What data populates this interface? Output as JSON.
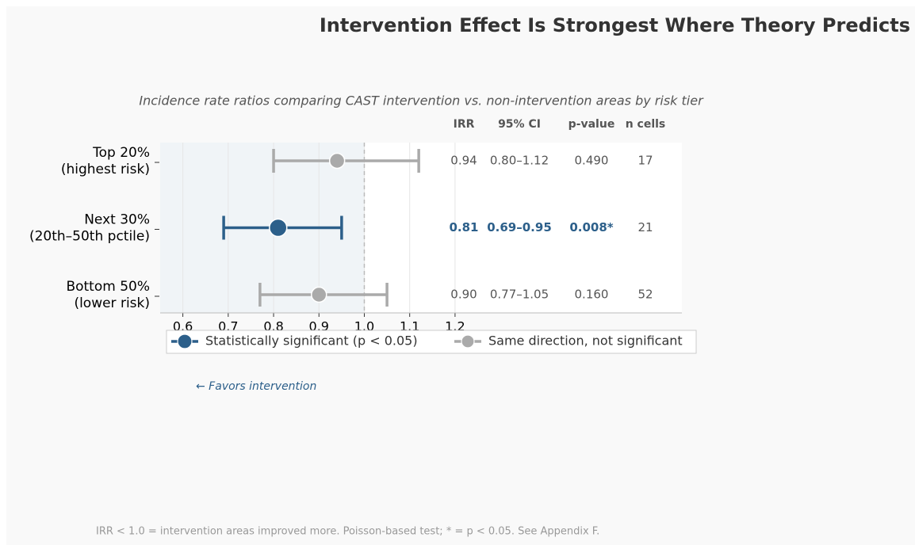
{
  "chart_data": {
    "type": "forest",
    "title": "Intervention Effect Is Strongest Where Theory Predicts",
    "subtitle": "Incidence rate ratios comparing CAST intervention vs. non-intervention areas by risk tier",
    "categories": [
      [
        "Top 20%",
        "(highest risk)"
      ],
      [
        "Next 30%",
        "(20th–50th pctile)"
      ],
      [
        "Bottom 50%",
        "(lower risk)"
      ]
    ],
    "values": [
      0.94,
      0.81,
      0.9
    ],
    "value_labels": [
      "0.94",
      "0.81",
      "0.90"
    ],
    "ci_low": [
      0.8,
      0.69,
      0.77
    ],
    "ci_high": [
      1.12,
      0.95,
      1.05
    ],
    "ci_labels": [
      "0.80–1.12",
      "0.69–0.95",
      "0.77–1.05"
    ],
    "p_value_labels": [
      "0.490",
      "0.008*",
      "0.160"
    ],
    "n_cells": [
      17,
      21,
      52
    ],
    "significant": [
      false,
      true,
      false
    ],
    "table_headers": [
      "IRR",
      "95% CI",
      "p-value",
      "n cells"
    ],
    "legend": [
      {
        "name": "Statistically significant (p < 0.05)",
        "color": "#2c5f8a"
      },
      {
        "name": "Same direction, not significant",
        "color": "#aaaaaa"
      }
    ],
    "reference_line": 1,
    "annotation": "← Favors intervention",
    "footnote": "IRR < 1.0 = intervention areas improved more. Poisson-based test; * = p < 0.05. See Appendix F.",
    "xlim": [
      0.55,
      1.7
    ],
    "xticks": [
      0.6,
      0.7,
      0.8,
      0.9,
      {
        "value": 1,
        "label": "1.0"
      },
      1.1,
      1.2
    ],
    "grid": true
  }
}
